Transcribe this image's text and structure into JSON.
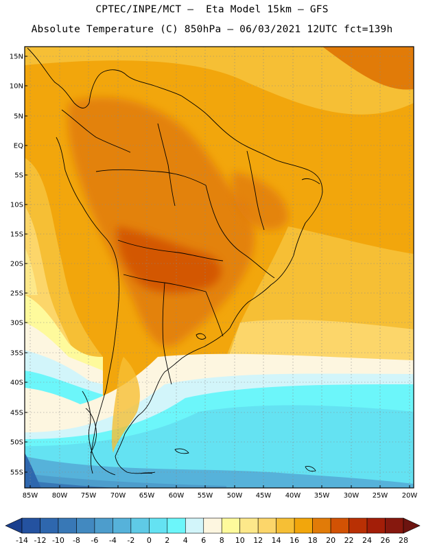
{
  "header": {
    "line1": "CPTEC/INPE/MCT –  Eta Model 15km – GFS",
    "line2": "Absolute Temperature (C) 850hPa – 06/03/2021 12UTC fct=139h"
  },
  "axes": {
    "lat_labels": [
      "15N",
      "10N",
      "5N",
      "EQ",
      "5S",
      "10S",
      "15S",
      "20S",
      "25S",
      "30S",
      "35S",
      "40S",
      "45S",
      "50S",
      "55S"
    ],
    "lon_labels": [
      "85W",
      "80W",
      "75W",
      "70W",
      "65W",
      "60W",
      "55W",
      "50W",
      "45W",
      "40W",
      "35W",
      "30W",
      "25W",
      "20W"
    ]
  },
  "colorbar": {
    "labels": [
      "-14",
      "-12",
      "-10",
      "-8",
      "-6",
      "-4",
      "-2",
      "0",
      "2",
      "4",
      "6",
      "8",
      "10",
      "12",
      "14",
      "16",
      "18",
      "20",
      "22",
      "24",
      "26",
      "28"
    ],
    "colors": [
      "#1a3f8e",
      "#2452a0",
      "#2e67ae",
      "#3878b6",
      "#4289c0",
      "#4d9dcc",
      "#56b2da",
      "#5fcae6",
      "#64e2f2",
      "#6cf6fa",
      "#d2f5fa",
      "#fdf6e0",
      "#fefa9c",
      "#fde88a",
      "#fcd66a",
      "#f6bf35",
      "#f2a60c",
      "#e17b08",
      "#d25204",
      "#b93004",
      "#a31e08",
      "#86180e",
      "#6c1410"
    ]
  }
}
